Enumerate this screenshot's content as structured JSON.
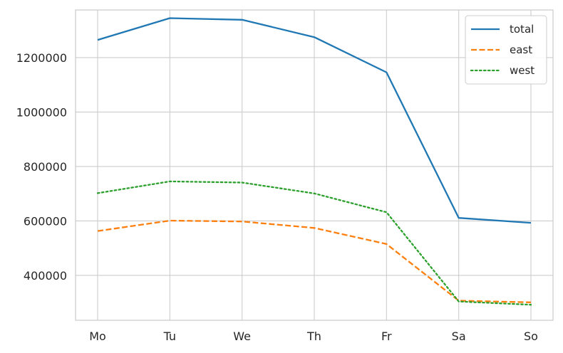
{
  "chart_data": {
    "type": "line",
    "title": "",
    "xlabel": "",
    "ylabel": "",
    "categories": [
      "Mo",
      "Tu",
      "We",
      "Th",
      "Fr",
      "Sa",
      "So"
    ],
    "ylim": [
      235000,
      1375000
    ],
    "yticks": [
      400000,
      600000,
      800000,
      1000000,
      1200000
    ],
    "ytick_labels": [
      "400000",
      "600000",
      "800000",
      "1000000",
      "1200000"
    ],
    "grid": true,
    "legend_position": "top-right",
    "series": [
      {
        "name": "total",
        "color": "#1f77b4",
        "dash": "solid",
        "values": [
          1265000,
          1345000,
          1339000,
          1275000,
          1146000,
          611000,
          593000
        ]
      },
      {
        "name": "east",
        "color": "#ff7f0e",
        "dash": "dashed",
        "values": [
          563000,
          601000,
          598000,
          574000,
          515000,
          307000,
          301000
        ]
      },
      {
        "name": "west",
        "color": "#2ca02c",
        "dash": "dotted",
        "values": [
          702000,
          745000,
          741000,
          701000,
          632000,
          304000,
          292000
        ]
      }
    ]
  }
}
